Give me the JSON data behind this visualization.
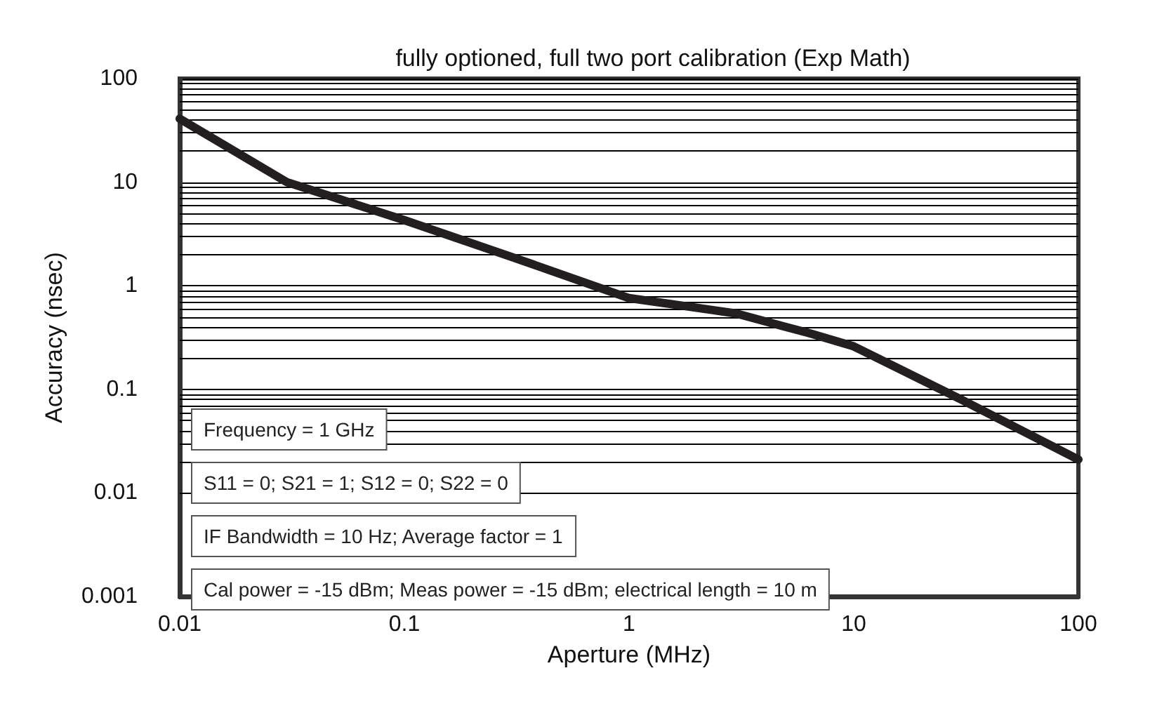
{
  "chart_data": {
    "type": "line",
    "title": "fully optioned, full two port calibration (Exp Math)",
    "xlabel": "Aperture (MHz)",
    "ylabel": "Accuracy (nsec)",
    "x": [
      0.01,
      0.03,
      0.1,
      0.3,
      1,
      3,
      5,
      6.3,
      10,
      30,
      100
    ],
    "series": [
      {
        "color": "#231f20",
        "values": [
          41,
          10,
          4.3,
          1.9,
          0.76,
          0.54,
          0.4,
          0.35,
          0.26,
          0.08,
          0.021
        ]
      }
    ],
    "xlim": [
      0.01,
      100
    ],
    "xticks": [
      0.01,
      0.1,
      1,
      10,
      100
    ],
    "ylim": [
      0.001,
      100
    ],
    "yticks": [
      0.001,
      0.01,
      0.1,
      1,
      10,
      100
    ],
    "log": "xy",
    "grid": "y",
    "marker": "none",
    "line_style": "solid",
    "annotations": [
      "Frequency = 1 GHz",
      "S11 = 0; S21 = 1; S12 = 0; S22 = 0",
      "IF Bandwidth = 10 Hz; Average factor = 1",
      "Cal power = -15 dBm; Meas power = -15 dBm; electrical length = 10 m"
    ]
  }
}
